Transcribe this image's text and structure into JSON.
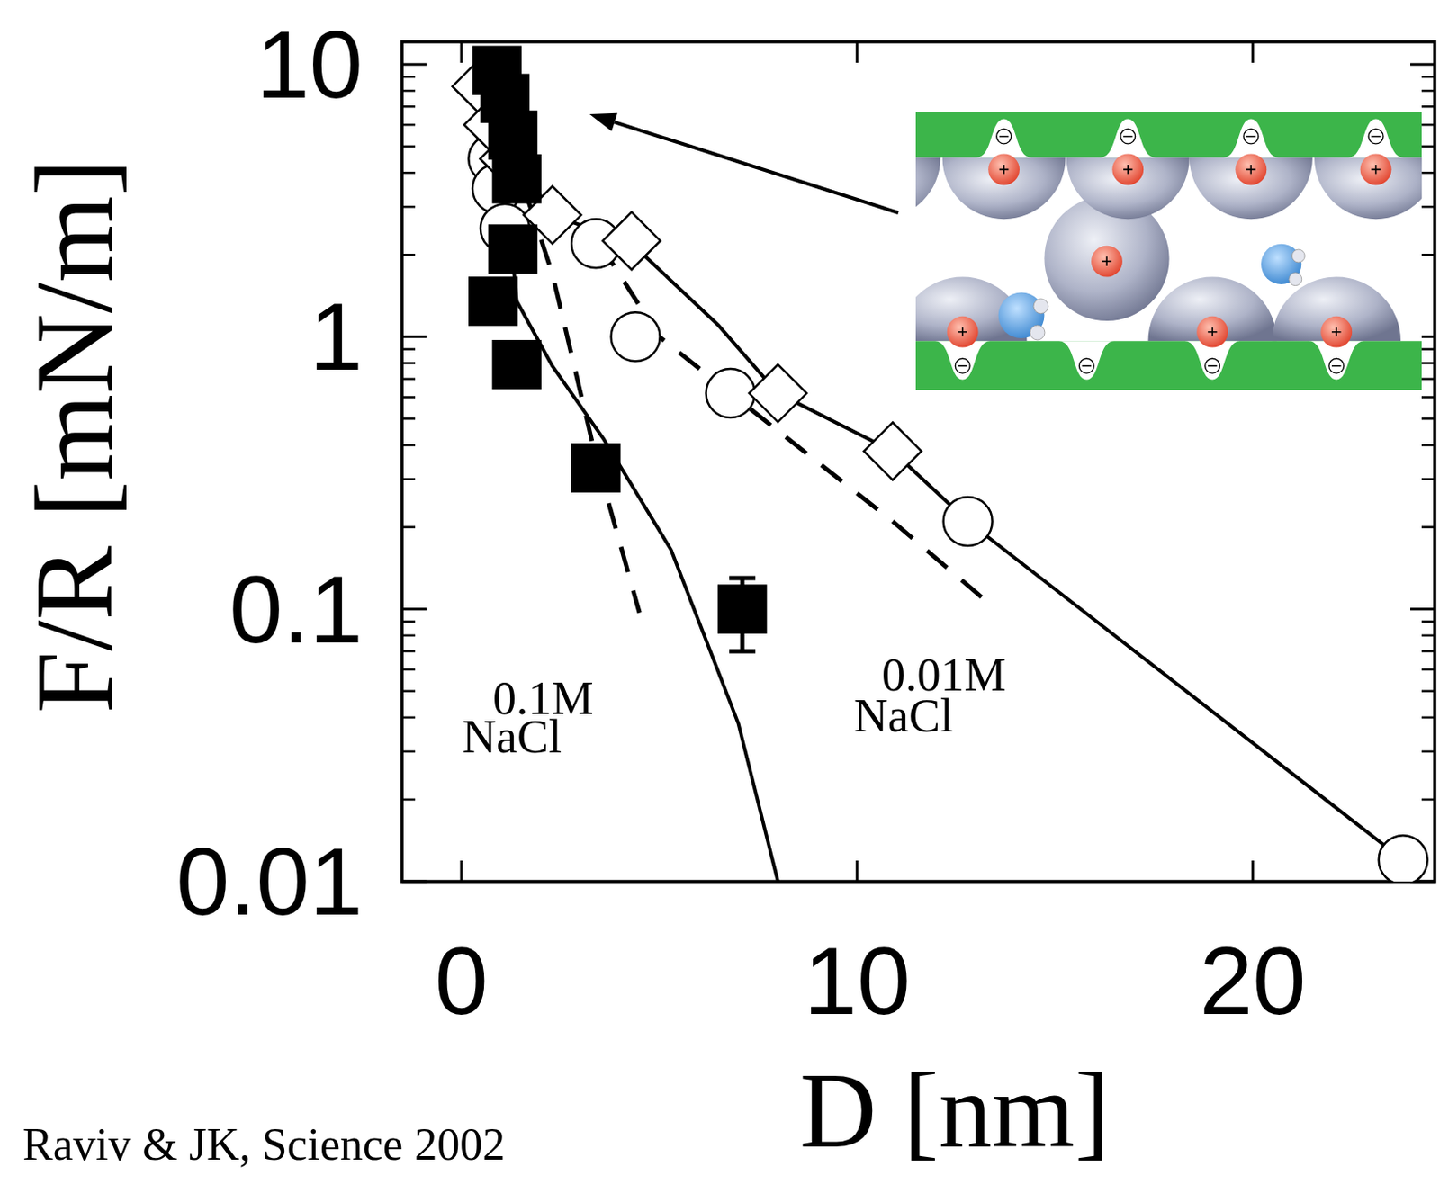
{
  "chart_data": {
    "type": "scatter",
    "log": "y",
    "xlabel": "D [nm]",
    "ylabel": "F/R [mN/m]",
    "source": "Raviv & JK, Science 2002",
    "annotations": [
      {
        "lines": [
          "0.1M",
          "NaCl"
        ]
      },
      {
        "lines": [
          "0.01M",
          "NaCl"
        ]
      }
    ],
    "xlim": [
      -1.5,
      24.6
    ],
    "ylim": [
      0.01,
      12.1
    ],
    "xticks": [
      0,
      10,
      20
    ],
    "yticks": [
      0.01,
      0.1,
      1,
      10
    ],
    "series": [
      {
        "type": "scatter",
        "marker": "filled-square",
        "color": "#000000",
        "x": [
          0.9,
          1.1,
          1.3,
          1.4,
          1.3,
          0.8,
          1.4,
          3.4,
          7.1
        ],
        "values": [
          9.5,
          7.5,
          5.5,
          3.8,
          2.1,
          1.35,
          0.79,
          0.33,
          0.1
        ],
        "errors": [
          null,
          null,
          null,
          null,
          null,
          null,
          null,
          null,
          0.03
        ]
      },
      {
        "type": "scatter",
        "marker": "open-circle",
        "color": "#000000",
        "x": [
          0.8,
          0.9,
          1.1,
          3.4,
          4.4,
          6.8,
          12.8,
          23.8
        ],
        "values": [
          4.5,
          3.5,
          2.5,
          2.2,
          1.0,
          0.62,
          0.21,
          0.012
        ]
      },
      {
        "type": "scatter",
        "marker": "open-diamond",
        "color": "#000000",
        "x": [
          0.5,
          0.8,
          1.2,
          2.3,
          4.3,
          8.0,
          10.9
        ],
        "values": [
          8.3,
          6.0,
          4.5,
          2.8,
          2.25,
          0.62,
          0.38
        ]
      },
      {
        "type": "line",
        "line_style": "solid",
        "color": "#000000",
        "x": [
          1.2,
          1.4,
          2.3,
          3.6,
          5.3,
          7.0,
          8.0
        ],
        "values": [
          2.7,
          1.35,
          0.78,
          0.42,
          0.165,
          0.038,
          0.01
        ]
      },
      {
        "type": "line",
        "line_style": "dashed",
        "color": "#000000",
        "x": [
          1.3,
          2.3,
          3.4,
          4.5
        ],
        "values": [
          4.7,
          1.7,
          0.36,
          0.097
        ]
      },
      {
        "type": "line",
        "line_style": "solid",
        "color": "#000000",
        "x": [
          1.3,
          2.3,
          4.3,
          6.5,
          8.0,
          10.9,
          12.8,
          23.8
        ],
        "values": [
          4.8,
          2.8,
          2.2,
          1.1,
          0.62,
          0.38,
          0.21,
          0.012
        ]
      },
      {
        "type": "line",
        "line_style": "dashed",
        "color": "#000000",
        "x": [
          3.5,
          5.0,
          6.8,
          10.9,
          13.5
        ],
        "values": [
          2.2,
          1.0,
          0.62,
          0.21,
          0.1
        ]
      }
    ]
  }
}
